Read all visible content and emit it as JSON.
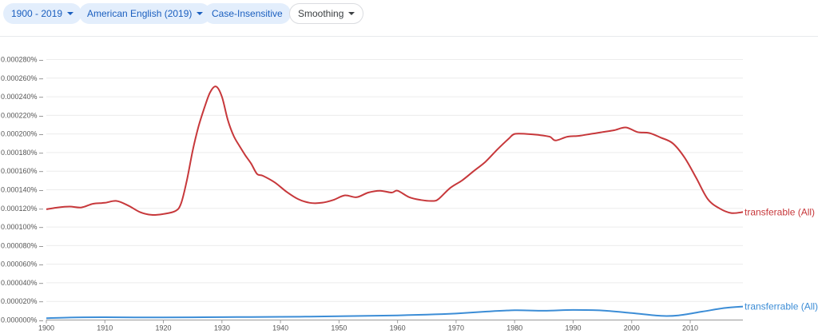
{
  "toolbar": {
    "range_label": "1900 - 2019",
    "corpus_label": "American English (2019)",
    "case_label": "Case-Insensitive",
    "smoothing_label": "Smoothing",
    "accent": "#1b5fbf"
  },
  "chart_data": {
    "type": "line",
    "title": "",
    "xlabel": "",
    "ylabel": "",
    "xlim": [
      1900,
      2019
    ],
    "ylim": [
      0,
      0.00028
    ],
    "grid": true,
    "legend": "inline-right",
    "x_ticks": [
      "1900",
      "1910",
      "1920",
      "1930",
      "1940",
      "1950",
      "1960",
      "1970",
      "1980",
      "1990",
      "2000",
      "2010"
    ],
    "y_ticks": [
      "0.000000%",
      "0.000020%",
      "0.000040%",
      "0.000060%",
      "0.000080%",
      "0.000100%",
      "0.000120%",
      "0.000140%",
      "0.000160%",
      "0.000180%",
      "0.000200%",
      "0.000220%",
      "0.000240%",
      "0.000260%",
      "0.000280%"
    ],
    "series": [
      {
        "name": "transferable (All)",
        "color": "#c7383b",
        "points": [
          [
            1900,
            0.000119
          ],
          [
            1902,
            0.000121
          ],
          [
            1904,
            0.000122
          ],
          [
            1906,
            0.000121
          ],
          [
            1908,
            0.000125
          ],
          [
            1910,
            0.000126
          ],
          [
            1912,
            0.000128
          ],
          [
            1914,
            0.000123
          ],
          [
            1916,
            0.000116
          ],
          [
            1918,
            0.000113
          ],
          [
            1920,
            0.000114
          ],
          [
            1922,
            0.000117
          ],
          [
            1923,
            0.000125
          ],
          [
            1924,
            0.00015
          ],
          [
            1925,
            0.000182
          ],
          [
            1926,
            0.000208
          ],
          [
            1927,
            0.000228
          ],
          [
            1928,
            0.000245
          ],
          [
            1929,
            0.000251
          ],
          [
            1930,
            0.00024
          ],
          [
            1931,
            0.000215
          ],
          [
            1932,
            0.000198
          ],
          [
            1933,
            0.000187
          ],
          [
            1934,
            0.000177
          ],
          [
            1935,
            0.000168
          ],
          [
            1936,
            0.000157
          ],
          [
            1937,
            0.000155
          ],
          [
            1939,
            0.000148
          ],
          [
            1941,
            0.000138
          ],
          [
            1943,
            0.00013
          ],
          [
            1945,
            0.000126
          ],
          [
            1947,
            0.000126
          ],
          [
            1949,
            0.000129
          ],
          [
            1951,
            0.000134
          ],
          [
            1953,
            0.000132
          ],
          [
            1955,
            0.000137
          ],
          [
            1957,
            0.000139
          ],
          [
            1959,
            0.000137
          ],
          [
            1960,
            0.000139
          ],
          [
            1962,
            0.000132
          ],
          [
            1964,
            0.000129
          ],
          [
            1966,
            0.000128
          ],
          [
            1967,
            0.00013
          ],
          [
            1969,
            0.000142
          ],
          [
            1971,
            0.00015
          ],
          [
            1973,
            0.00016
          ],
          [
            1975,
            0.00017
          ],
          [
            1977,
            0.000183
          ],
          [
            1979,
            0.000195
          ],
          [
            1980,
            0.0002
          ],
          [
            1982,
            0.0002
          ],
          [
            1984,
            0.000199
          ],
          [
            1986,
            0.000197
          ],
          [
            1987,
            0.000193
          ],
          [
            1989,
            0.000197
          ],
          [
            1991,
            0.000198
          ],
          [
            1993,
            0.0002
          ],
          [
            1995,
            0.000202
          ],
          [
            1997,
            0.000204
          ],
          [
            1999,
            0.000207
          ],
          [
            2001,
            0.000202
          ],
          [
            2003,
            0.000201
          ],
          [
            2005,
            0.000196
          ],
          [
            2007,
            0.00019
          ],
          [
            2009,
            0.000175
          ],
          [
            2011,
            0.000153
          ],
          [
            2013,
            0.00013
          ],
          [
            2015,
            0.00012
          ],
          [
            2017,
            0.000115
          ],
          [
            2019,
            0.000116
          ]
        ]
      },
      {
        "name": "transferrable (All)",
        "color": "#3c8dd6",
        "points": [
          [
            1900,
            2e-06
          ],
          [
            1905,
            2.8e-06
          ],
          [
            1910,
            3e-06
          ],
          [
            1915,
            2.8e-06
          ],
          [
            1920,
            2.8e-06
          ],
          [
            1925,
            2.9e-06
          ],
          [
            1930,
            3.1e-06
          ],
          [
            1935,
            3.3e-06
          ],
          [
            1940,
            3.4e-06
          ],
          [
            1945,
            3.7e-06
          ],
          [
            1950,
            4.1e-06
          ],
          [
            1955,
            4.5e-06
          ],
          [
            1960,
            5e-06
          ],
          [
            1965,
            5.8e-06
          ],
          [
            1970,
            7e-06
          ],
          [
            1975,
            9e-06
          ],
          [
            1980,
            1.05e-05
          ],
          [
            1985,
            1e-05
          ],
          [
            1990,
            1.08e-05
          ],
          [
            1995,
            1.02e-05
          ],
          [
            2000,
            7.5e-06
          ],
          [
            2005,
            4.5e-06
          ],
          [
            2008,
            5e-06
          ],
          [
            2012,
            9e-06
          ],
          [
            2016,
            1.3e-05
          ],
          [
            2019,
            1.45e-05
          ]
        ]
      }
    ]
  }
}
